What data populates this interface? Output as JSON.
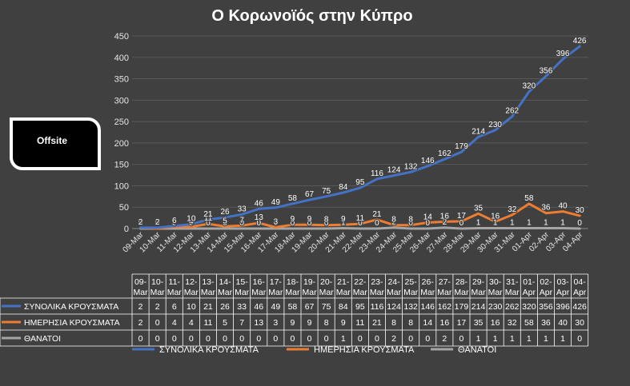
{
  "logo": {
    "text": "Offsite"
  },
  "chart_data": {
    "type": "line",
    "title": "Ο Κορωνοϊός στην Κύπρο",
    "ylim": [
      0,
      450
    ],
    "yticks": [
      0,
      50,
      100,
      150,
      200,
      250,
      300,
      350,
      400,
      450
    ],
    "categories": [
      "09-Mar",
      "10-Mar",
      "11-Mar",
      "12-Mar",
      "13-Mar",
      "14-Mar",
      "15-Mar",
      "16-Mar",
      "17-Mar",
      "18-Mar",
      "19-Mar",
      "20-Mar",
      "21-Mar",
      "22-Mar",
      "23-Mar",
      "24-Mar",
      "25-Mar",
      "26-Mar",
      "27-Mar",
      "28-Mar",
      "29-Mar",
      "30-Mar",
      "31-Mar",
      "01-Apr",
      "02-Apr",
      "03-Apr",
      "04-Apr"
    ],
    "series": [
      {
        "name": "ΣΥΝΟΛΙΚΑ ΚΡΟΥΣΜΑΤΑ",
        "color": "#4472c4",
        "values": [
          2,
          2,
          6,
          10,
          21,
          26,
          33,
          46,
          49,
          58,
          67,
          75,
          84,
          95,
          116,
          124,
          132,
          146,
          162,
          179,
          214,
          230,
          262,
          320,
          356,
          396,
          426
        ]
      },
      {
        "name": "ΗΜΕΡΗΣΙΑ ΚΡΟΥΣΜΑΤΑ",
        "color": "#ed7d31",
        "values": [
          2,
          0,
          4,
          4,
          11,
          5,
          7,
          13,
          3,
          9,
          9,
          8,
          9,
          11,
          21,
          8,
          8,
          14,
          16,
          17,
          35,
          16,
          32,
          58,
          36,
          40,
          30
        ]
      },
      {
        "name": "ΘΑΝΑΤΟΙ",
        "color": "#a5a5a5",
        "values": [
          0,
          0,
          0,
          0,
          0,
          0,
          0,
          0,
          0,
          0,
          0,
          0,
          1,
          0,
          0,
          2,
          0,
          0,
          2,
          0,
          1,
          1,
          1,
          1,
          1,
          1,
          0
        ]
      }
    ],
    "grid": true,
    "legend": "bottom",
    "data_table": true
  }
}
